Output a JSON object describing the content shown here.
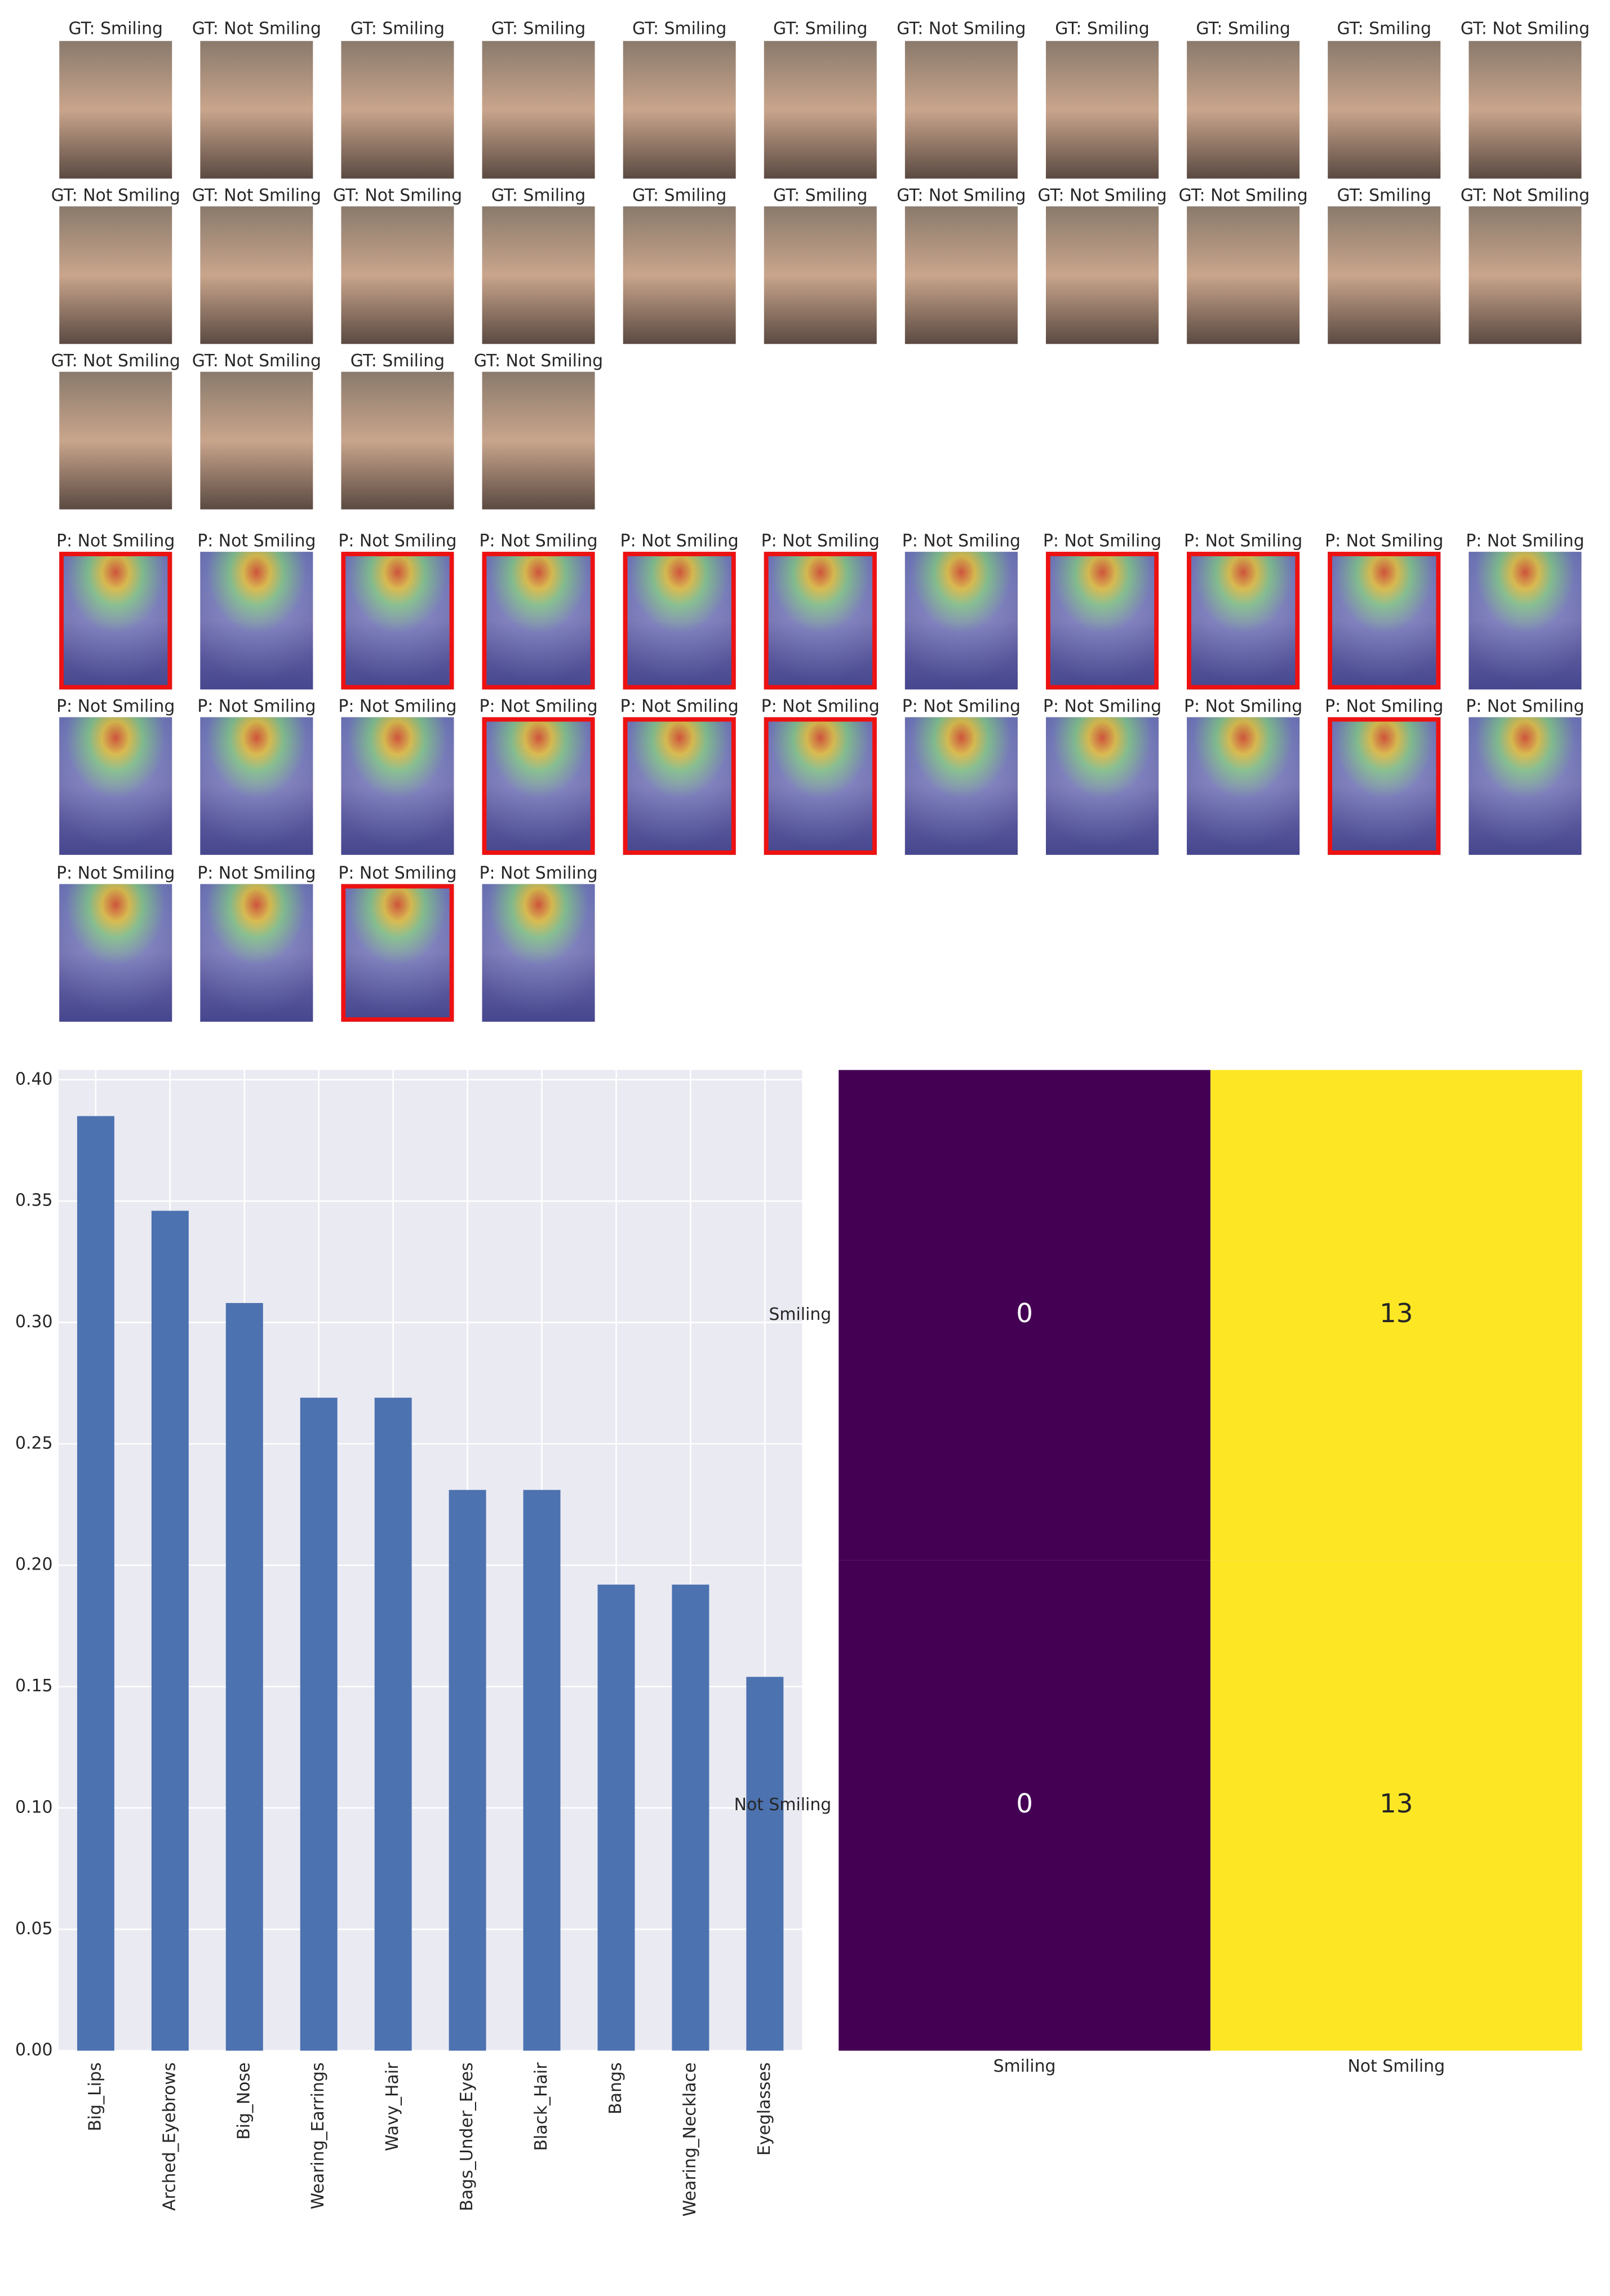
{
  "faces": {
    "ground_truth": [
      "GT: Smiling",
      "GT: Not Smiling",
      "GT: Smiling",
      "GT: Smiling",
      "GT: Smiling",
      "GT: Smiling",
      "GT: Not Smiling",
      "GT: Smiling",
      "GT: Smiling",
      "GT: Smiling",
      "GT: Not Smiling",
      "GT: Not Smiling",
      "GT: Not Smiling",
      "GT: Not Smiling",
      "GT: Smiling",
      "GT: Smiling",
      "GT: Smiling",
      "GT: Not Smiling",
      "GT: Not Smiling",
      "GT: Not Smiling",
      "GT: Smiling",
      "GT: Not Smiling",
      "GT: Not Smiling",
      "GT: Not Smiling",
      "GT: Smiling",
      "GT: Not Smiling"
    ],
    "predictions": [
      "P: Not Smiling",
      "P: Not Smiling",
      "P: Not Smiling",
      "P: Not Smiling",
      "P: Not Smiling",
      "P: Not Smiling",
      "P: Not Smiling",
      "P: Not Smiling",
      "P: Not Smiling",
      "P: Not Smiling",
      "P: Not Smiling",
      "P: Not Smiling",
      "P: Not Smiling",
      "P: Not Smiling",
      "P: Not Smiling",
      "P: Not Smiling",
      "P: Not Smiling",
      "P: Not Smiling",
      "P: Not Smiling",
      "P: Not Smiling",
      "P: Not Smiling",
      "P: Not Smiling",
      "P: Not Smiling",
      "P: Not Smiling",
      "P: Not Smiling",
      "P: Not Smiling"
    ],
    "flagged": [
      true,
      false,
      true,
      true,
      true,
      true,
      false,
      true,
      true,
      true,
      false,
      false,
      false,
      false,
      true,
      true,
      true,
      false,
      false,
      false,
      true,
      false,
      false,
      false,
      true,
      false
    ],
    "flag_color": "#ee1111"
  },
  "chart_data": [
    {
      "type": "bar",
      "categories": [
        "Big_Lips",
        "Arched_Eyebrows",
        "Big_Nose",
        "Wearing_Earrings",
        "Wavy_Hair",
        "Bags_Under_Eyes",
        "Black_Hair",
        "Bangs",
        "Wearing_Necklace",
        "Eyeglasses"
      ],
      "values": [
        0.385,
        0.346,
        0.308,
        0.269,
        0.269,
        0.231,
        0.231,
        0.192,
        0.192,
        0.154
      ],
      "color": "#4c72b0",
      "ylim": [
        0,
        0.404
      ],
      "yticks": [
        {
          "value": 0,
          "label": "0.00"
        },
        {
          "value": 0.05,
          "label": "0.05"
        },
        {
          "value": 0.1,
          "label": "0.10"
        },
        {
          "value": 0.15,
          "label": "0.15"
        },
        {
          "value": 0.2,
          "label": "0.20"
        },
        {
          "value": 0.25,
          "label": "0.25"
        },
        {
          "value": 0.3,
          "label": "0.30"
        },
        {
          "value": 0.35,
          "label": "0.35"
        },
        {
          "value": 0.4,
          "label": "0.40"
        }
      ],
      "grid": true
    },
    {
      "type": "heatmap",
      "x_categories": [
        "Smiling",
        "Not Smiling"
      ],
      "y_categories": [
        "Smiling",
        "Not Smiling"
      ],
      "values": [
        [
          0,
          13
        ],
        [
          0,
          13
        ]
      ],
      "colors": [
        "#440154",
        "#fde725"
      ]
    }
  ]
}
